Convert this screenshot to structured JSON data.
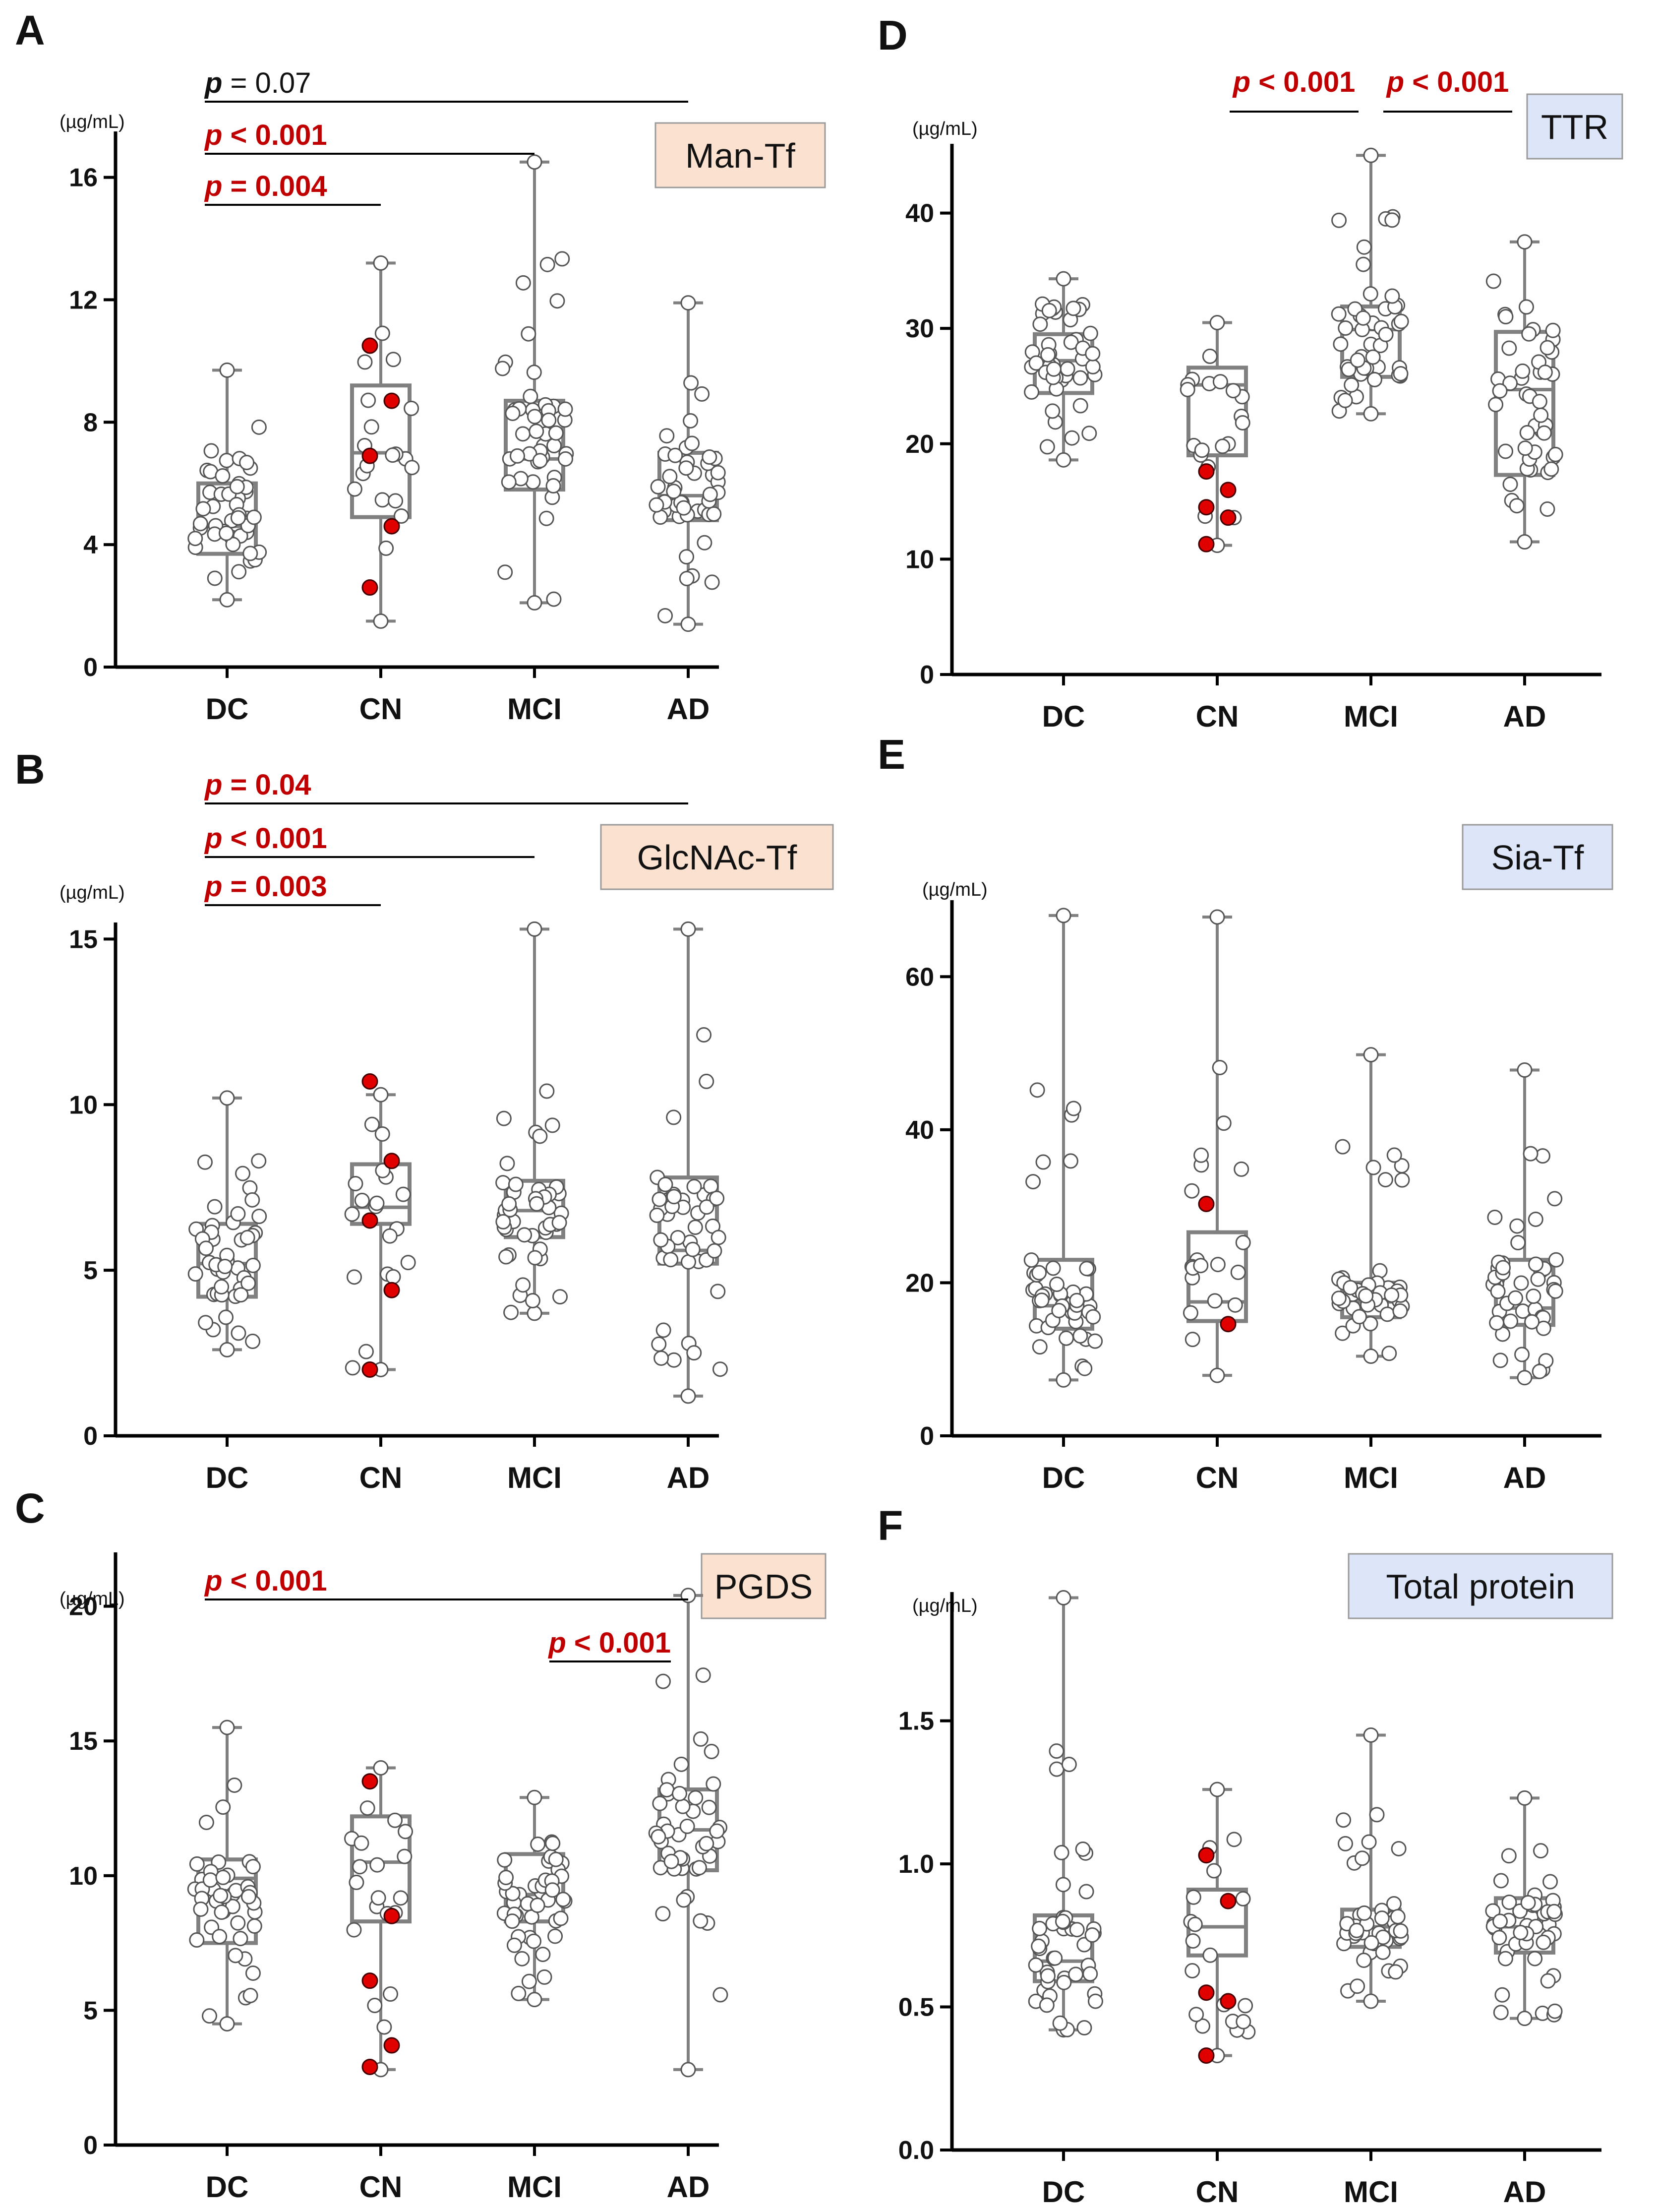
{
  "colors": {
    "title_box_orange": "#fbe1d0",
    "title_box_blue": "#dde6f8",
    "significant": "#c00000",
    "nonsignificant": "#111111",
    "box_stroke": "#808080",
    "highlight_point": "#e00000"
  },
  "chart_data": [
    {
      "panel": "A",
      "type": "box",
      "title": "Man-Tf",
      "ylabel": "(µg/mL)",
      "categories": [
        "DC",
        "CN",
        "MCI",
        "AD"
      ],
      "ylim": [
        0,
        17.5
      ],
      "yticks": [
        0,
        4,
        8,
        12,
        16
      ],
      "boxes": [
        {
          "min": 2.2,
          "q1": 3.7,
          "median": 4.6,
          "q3": 6.0,
          "max": 9.7
        },
        {
          "min": 1.5,
          "q1": 4.9,
          "median": 7.0,
          "q3": 9.2,
          "max": 13.2
        },
        {
          "min": 2.1,
          "q1": 5.8,
          "median": 6.8,
          "q3": 8.7,
          "max": 16.5
        },
        {
          "min": 1.4,
          "q1": 4.8,
          "median": 5.6,
          "q3": 7.0,
          "max": 11.9
        }
      ],
      "red_points": [
        {
          "group": 1,
          "values": [
            10.5,
            8.7,
            6.9,
            4.6,
            2.6
          ]
        }
      ],
      "comparisons": [
        {
          "from": 0,
          "to": 3,
          "p_prefix": "p",
          "p_rest": " = 0.07",
          "significant": false
        },
        {
          "from": 0,
          "to": 2,
          "p_prefix": "p",
          "p_rest": " < 0.001",
          "significant": true
        },
        {
          "from": 0,
          "to": 1,
          "p_prefix": "p",
          "p_rest": " = 0.004",
          "significant": true
        }
      ]
    },
    {
      "panel": "B",
      "type": "box",
      "title": "GlcNAc-Tf",
      "ylabel": "(µg/mL)",
      "categories": [
        "DC",
        "CN",
        "MCI",
        "AD"
      ],
      "ylim": [
        0,
        15.5
      ],
      "yticks": [
        0,
        5,
        10,
        15
      ],
      "boxes": [
        {
          "min": 2.6,
          "q1": 4.2,
          "median": 5.2,
          "q3": 6.4,
          "max": 10.2
        },
        {
          "min": 2.0,
          "q1": 6.4,
          "median": 6.9,
          "q3": 8.2,
          "max": 10.3
        },
        {
          "min": 3.7,
          "q1": 6.0,
          "median": 6.8,
          "q3": 7.7,
          "max": 15.3
        },
        {
          "min": 1.2,
          "q1": 5.2,
          "median": 5.6,
          "q3": 7.8,
          "max": 15.3
        }
      ],
      "red_points": [
        {
          "group": 1,
          "values": [
            10.7,
            8.3,
            6.5,
            4.4,
            2.0
          ]
        }
      ],
      "comparisons": [
        {
          "from": 0,
          "to": 3,
          "p_prefix": "p",
          "p_rest": " = 0.04",
          "significant": true
        },
        {
          "from": 0,
          "to": 2,
          "p_prefix": "p",
          "p_rest": " < 0.001",
          "significant": true
        },
        {
          "from": 0,
          "to": 1,
          "p_prefix": "p",
          "p_rest": " = 0.003",
          "significant": true
        }
      ]
    },
    {
      "panel": "C",
      "type": "box",
      "title": "PGDS",
      "ylabel": "(µg/mL)",
      "categories": [
        "DC",
        "CN",
        "MCI",
        "AD"
      ],
      "ylim": [
        0,
        22
      ],
      "yticks": [
        0,
        5,
        10,
        15,
        20
      ],
      "boxes": [
        {
          "min": 4.5,
          "q1": 7.5,
          "median": 9.9,
          "q3": 10.6,
          "max": 15.5
        },
        {
          "min": 2.8,
          "q1": 8.3,
          "median": 10.5,
          "q3": 12.2,
          "max": 14.0
        },
        {
          "min": 5.4,
          "q1": 8.3,
          "median": 9.3,
          "q3": 10.8,
          "max": 12.9
        },
        {
          "min": 2.8,
          "q1": 10.2,
          "median": 11.7,
          "q3": 13.2,
          "max": 20.4
        }
      ],
      "red_points": [
        {
          "group": 1,
          "values": [
            13.5,
            8.5,
            6.1,
            3.7,
            2.9
          ]
        }
      ],
      "comparisons": [
        {
          "from": 0,
          "to": 3,
          "p_prefix": "p",
          "p_rest": " < 0.001",
          "significant": true
        },
        {
          "from": 2,
          "to": 3,
          "p_prefix": "p",
          "p_rest": " < 0.001",
          "significant": true
        }
      ]
    },
    {
      "panel": "D",
      "type": "box",
      "title": "TTR",
      "ylabel": "(µg/mL)",
      "categories": [
        "DC",
        "CN",
        "MCI",
        "AD"
      ],
      "ylim": [
        0,
        46
      ],
      "yticks": [
        0,
        10,
        20,
        30,
        40
      ],
      "boxes": [
        {
          "min": 18.6,
          "q1": 24.4,
          "median": 27.2,
          "q3": 29.5,
          "max": 34.3
        },
        {
          "min": 11.2,
          "q1": 19.0,
          "median": 25.1,
          "q3": 26.6,
          "max": 30.5
        },
        {
          "min": 22.6,
          "q1": 25.8,
          "median": 29.9,
          "q3": 31.9,
          "max": 45.0
        },
        {
          "min": 11.5,
          "q1": 17.3,
          "median": 24.7,
          "q3": 29.7,
          "max": 37.5
        }
      ],
      "red_points": [
        {
          "group": 1,
          "values": [
            17.6,
            16.0,
            14.5,
            13.6,
            11.3
          ]
        }
      ],
      "comparisons": [
        {
          "from": 1,
          "to": 2,
          "p_prefix": "p",
          "p_rest": " < 0.001",
          "significant": true
        },
        {
          "from": 2,
          "to": 3,
          "p_prefix": "p",
          "p_rest": " < 0.001",
          "significant": true
        }
      ]
    },
    {
      "panel": "E",
      "type": "box",
      "title": "Sia-Tf",
      "ylabel": "(µg/mL)",
      "categories": [
        "DC",
        "CN",
        "MCI",
        "AD"
      ],
      "ylim": [
        0,
        70
      ],
      "yticks": [
        0,
        20,
        40,
        60
      ],
      "boxes": [
        {
          "min": 7.3,
          "q1": 14.0,
          "median": 17.0,
          "q3": 23.0,
          "max": 68.0
        },
        {
          "min": 7.9,
          "q1": 15.0,
          "median": 17.5,
          "q3": 26.6,
          "max": 67.8
        },
        {
          "min": 10.4,
          "q1": 15.5,
          "median": 17.5,
          "q3": 20.0,
          "max": 49.8
        },
        {
          "min": 7.6,
          "q1": 14.5,
          "median": 16.7,
          "q3": 23.0,
          "max": 47.8
        }
      ],
      "red_points": [
        {
          "group": 1,
          "values": [
            30.3,
            14.6
          ]
        }
      ],
      "comparisons": []
    },
    {
      "panel": "F",
      "type": "box",
      "title": "Total protein",
      "ylabel": "(µg/mL)",
      "categories": [
        "DC",
        "CN",
        "MCI",
        "AD"
      ],
      "ylim": [
        0,
        1.95
      ],
      "yticks": [
        0.0,
        0.5,
        1.0,
        1.5
      ],
      "ytick_labels": [
        "0.0",
        "0.5",
        "1.0",
        "1.5"
      ],
      "boxes": [
        {
          "min": 0.42,
          "q1": 0.59,
          "median": 0.66,
          "q3": 0.82,
          "max": 1.93
        },
        {
          "min": 0.33,
          "q1": 0.68,
          "median": 0.78,
          "q3": 0.91,
          "max": 1.26
        },
        {
          "min": 0.52,
          "q1": 0.71,
          "median": 0.78,
          "q3": 0.84,
          "max": 1.45
        },
        {
          "min": 0.46,
          "q1": 0.69,
          "median": 0.78,
          "q3": 0.88,
          "max": 1.23
        }
      ],
      "red_points": [
        {
          "group": 1,
          "values": [
            1.03,
            0.87,
            0.55,
            0.52,
            0.33
          ]
        }
      ],
      "comparisons": []
    }
  ]
}
